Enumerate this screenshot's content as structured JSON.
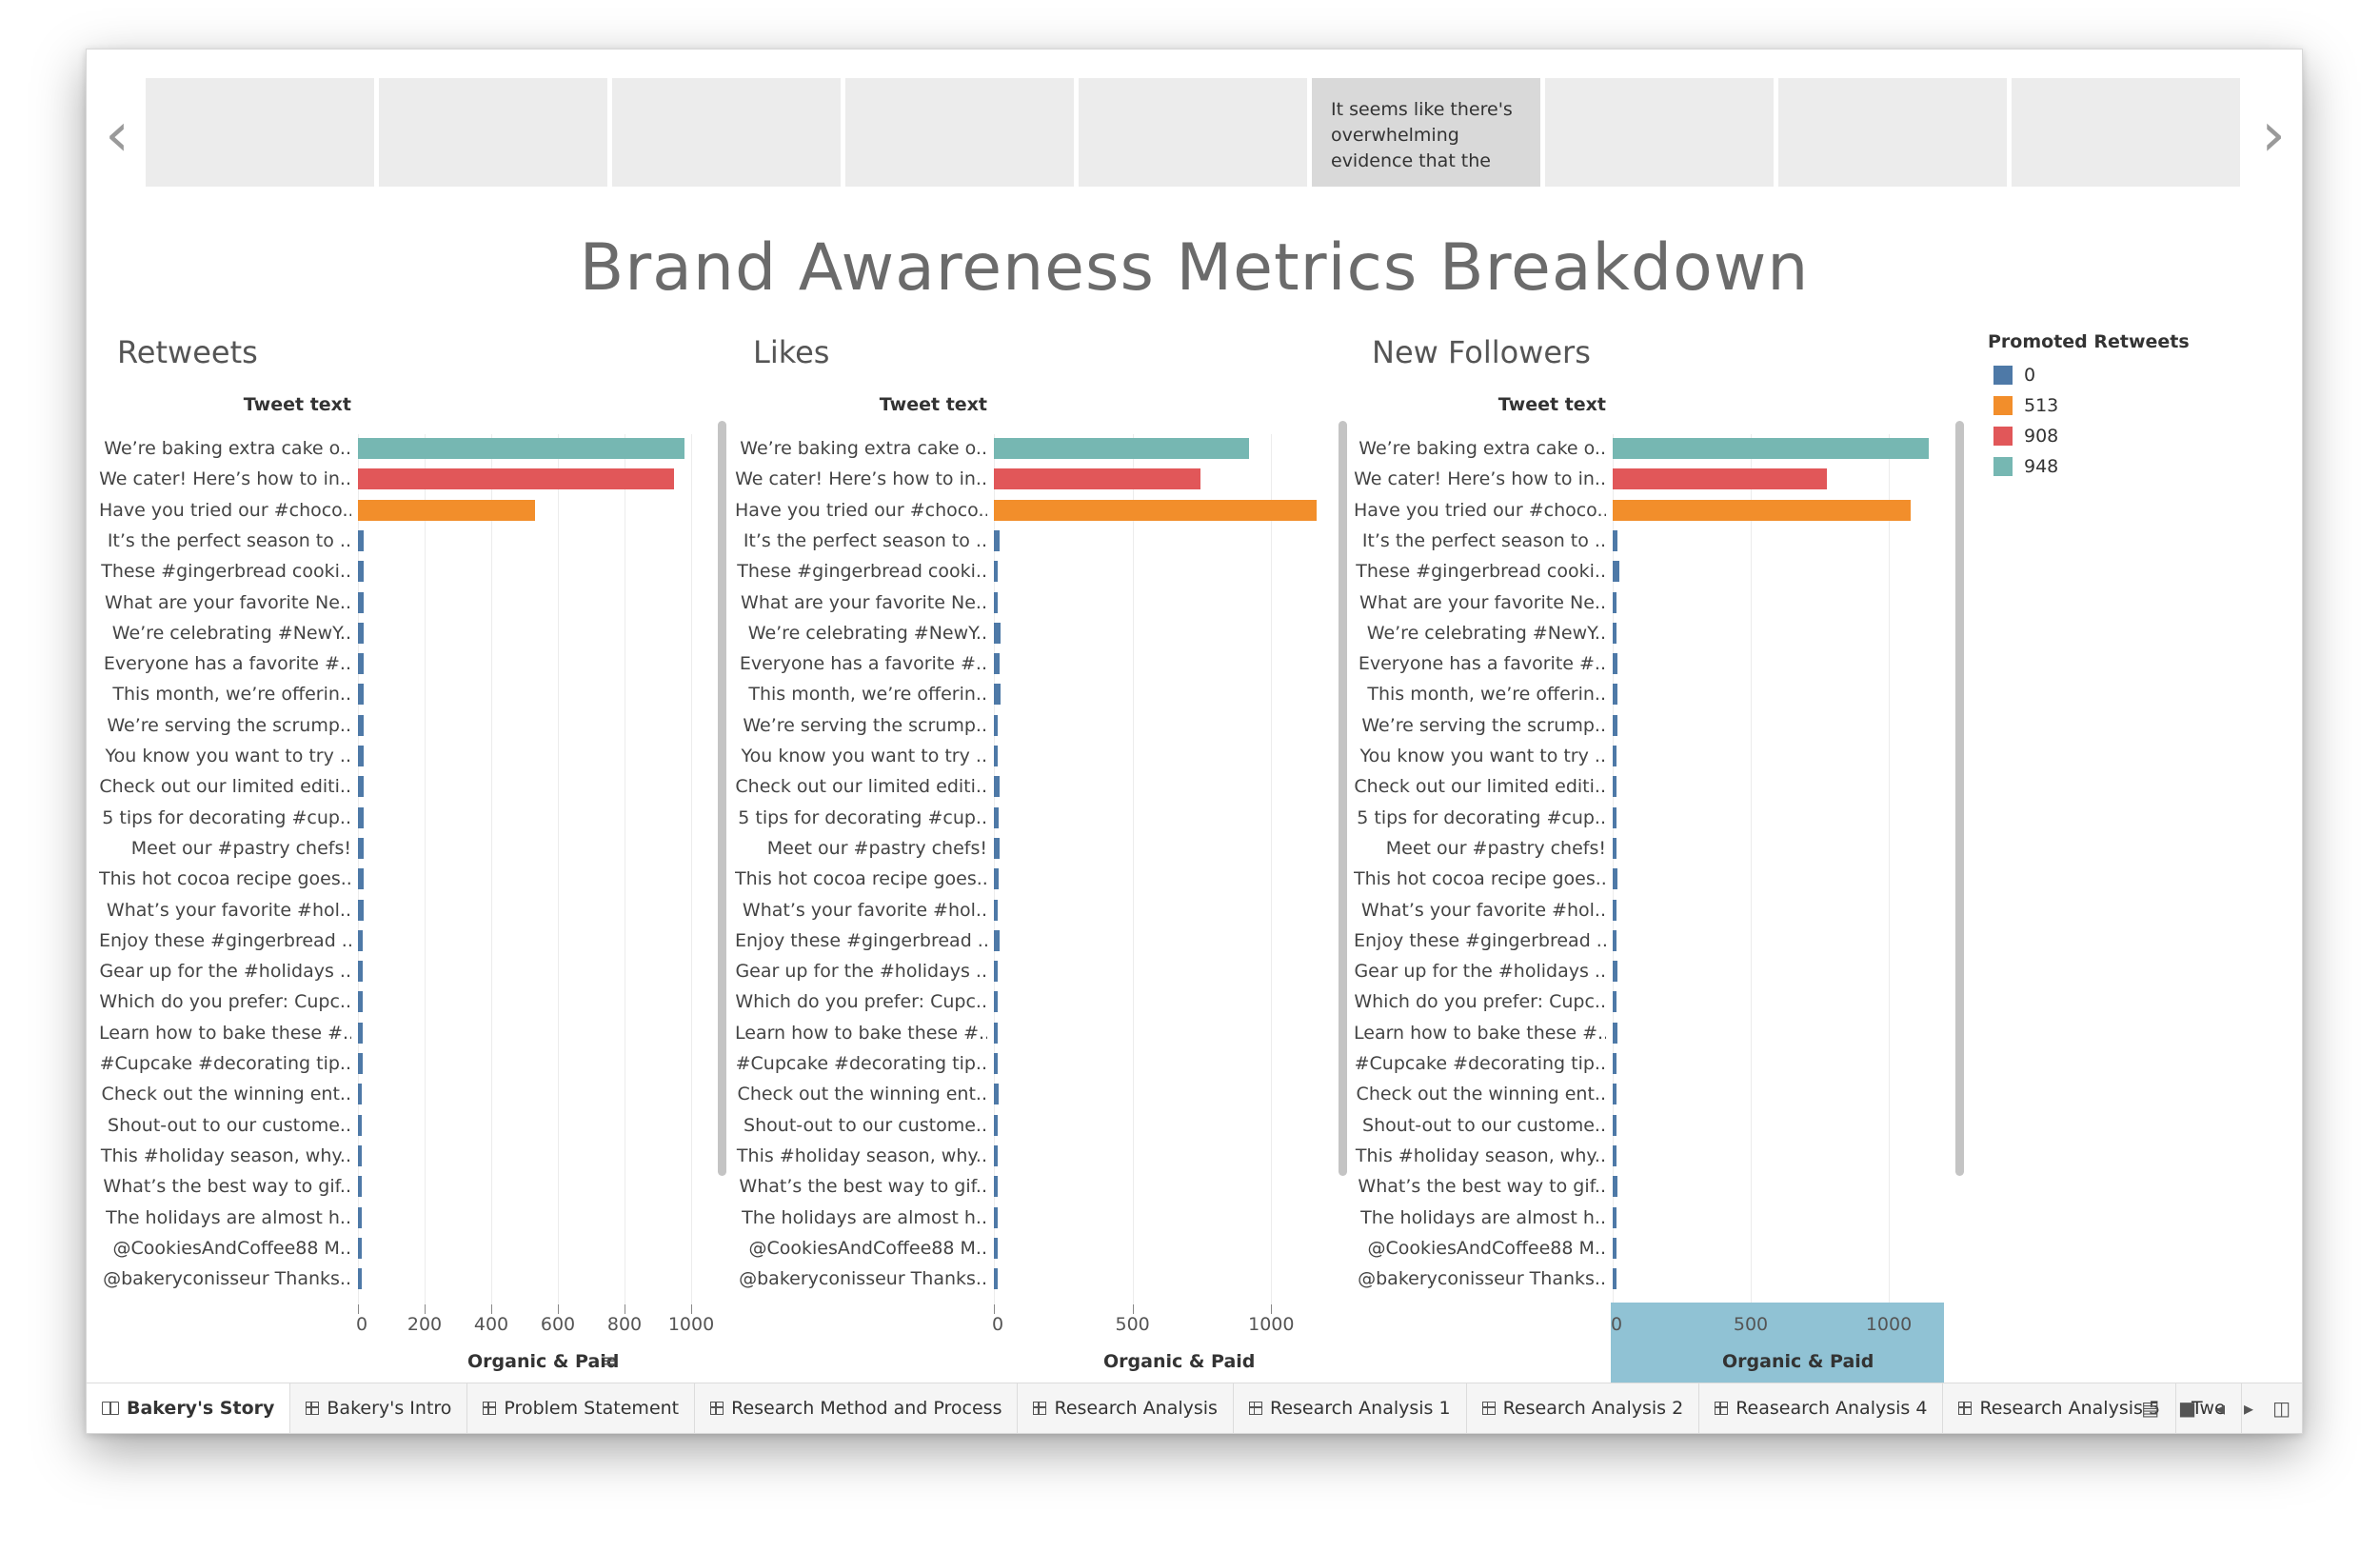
{
  "story": {
    "nav_prev_icon": "chevron-left-icon",
    "nav_next_icon": "chevron-right-icon",
    "points": [
      "",
      "",
      "",
      "",
      "",
      "It seems like there's overwhelming evidence that the",
      "",
      "",
      ""
    ],
    "active_point": 5
  },
  "title": "Brand Awareness Metrics Breakdown",
  "colors": {
    "0": "#4e79a7",
    "513": "#f28e2b",
    "908": "#e15759",
    "948": "#76b7b2"
  },
  "legend": {
    "title": "Promoted Retweets",
    "items": [
      {
        "label": "0",
        "color": "#4e79a7"
      },
      {
        "label": "513",
        "color": "#f28e2b"
      },
      {
        "label": "908",
        "color": "#e15759"
      },
      {
        "label": "948",
        "color": "#76b7b2"
      }
    ]
  },
  "tweets": [
    "We’re baking extra cake o..",
    "We cater! Here’s how to in..",
    "Have you tried our #choco..",
    "It’s the perfect season to ..",
    "These #gingerbread cooki..",
    "What are your favorite Ne..",
    "We’re celebrating #NewY..",
    "Everyone has a favorite #..",
    "This month, we’re offerin..",
    "We’re serving the scrump..",
    "You know you want to try ..",
    "Check out our limited editi..",
    "5 tips for decorating #cup..",
    "Meet our #pastry chefs!",
    "This hot cocoa recipe goes..",
    "What’s your favorite #hol..",
    "Enjoy these #gingerbread ..",
    "Gear up for the #holidays ..",
    "Which do you prefer: Cupc..",
    "Learn how to bake these #..",
    "#Cupcake #decorating tip..",
    "Check out the winning ent..",
    "Shout-out to our custome..",
    "This #holiday season, why..",
    "What’s the best way to gif..",
    "The holidays are almost h..",
    "@CookiesAndCoffee88 M..",
    "@bakeryconisseur Thanks.."
  ],
  "promoted": [
    "948",
    "908",
    "513",
    "0",
    "0",
    "0",
    "0",
    "0",
    "0",
    "0",
    "0",
    "0",
    "0",
    "0",
    "0",
    "0",
    "0",
    "0",
    "0",
    "0",
    "0",
    "0",
    "0",
    "0",
    "0",
    "0",
    "0",
    "0"
  ],
  "chart_data": [
    {
      "type": "bar",
      "title": "Retweets",
      "ylabel": "Tweet text",
      "xlabel": "Organic & Paid",
      "xlim": [
        0,
        1000
      ],
      "ticks": [
        "0",
        "200",
        "400",
        "600",
        "800",
        "1000"
      ],
      "values": [
        980,
        948,
        532,
        18,
        18,
        18,
        18,
        18,
        18,
        18,
        17,
        17,
        17,
        16,
        16,
        16,
        15,
        15,
        14,
        14,
        13,
        12,
        12,
        11,
        10,
        9,
        8,
        7
      ]
    },
    {
      "type": "bar",
      "title": "Likes",
      "ylabel": "Tweet text",
      "xlabel": "Organic & Paid",
      "xlim": [
        0,
        1150
      ],
      "ticks": [
        "0",
        "500",
        "1000"
      ],
      "values": [
        920,
        745,
        1165,
        22,
        12,
        10,
        25,
        22,
        24,
        12,
        8,
        20,
        18,
        20,
        18,
        14,
        20,
        12,
        12,
        14,
        14,
        18,
        9,
        10,
        9,
        6,
        6,
        4
      ]
    },
    {
      "type": "bar",
      "title": "New Followers",
      "ylabel": "Tweet text",
      "xlabel": "Organic & Paid",
      "xlim": [
        0,
        1200
      ],
      "ticks": [
        "0",
        "500",
        "1000"
      ],
      "values": [
        1145,
        775,
        1080,
        18,
        24,
        14,
        12,
        18,
        16,
        16,
        10,
        12,
        14,
        10,
        18,
        10,
        12,
        18,
        12,
        18,
        14,
        12,
        10,
        10,
        18,
        10,
        6,
        4
      ]
    }
  ],
  "tabs": [
    {
      "label": "Bakery's Story",
      "icon": "book-icon",
      "active": true
    },
    {
      "label": "Bakery's Intro",
      "icon": "grid-icon"
    },
    {
      "label": "Problem Statement",
      "icon": "grid-icon"
    },
    {
      "label": "Research Method and Process",
      "icon": "grid-icon"
    },
    {
      "label": "Research Analysis",
      "icon": "grid-icon"
    },
    {
      "label": "Research Analysis 1",
      "icon": "grid-icon"
    },
    {
      "label": "Research Analysis 2",
      "icon": "grid-icon"
    },
    {
      "label": "Reasearch Analysis 4",
      "icon": "grid-icon"
    },
    {
      "label": "Research Analysis 5",
      "icon": "grid-icon"
    },
    {
      "label": "Twe",
      "icon": ""
    }
  ]
}
